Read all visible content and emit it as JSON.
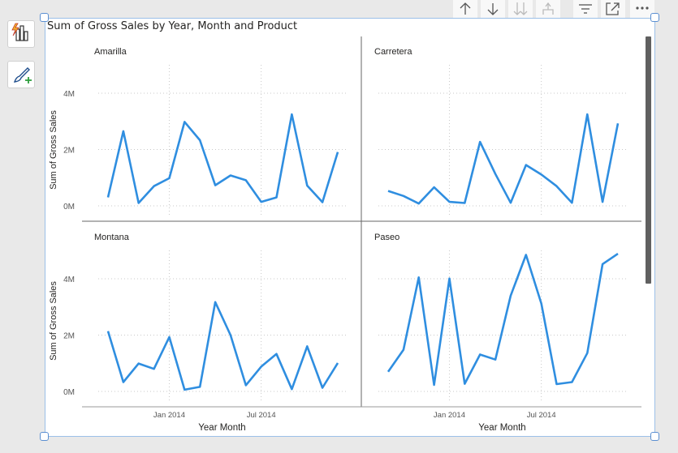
{
  "title": "Sum of Gross Sales by Year, Month and Product",
  "icons": {
    "side_buttons": [
      "build-visual-icon",
      "format-visual-icon"
    ],
    "toolbar": [
      "arrow-up-icon",
      "arrow-down-icon",
      "double-arrow-down-icon",
      "expand-hierarchy-icon",
      "filter-icon",
      "focus-mode-icon",
      "more-options-icon"
    ]
  },
  "colors": {
    "line": "#2f8ee0",
    "selection": "#5b8fd1",
    "text": "#252423",
    "grid": "#c8c8c8"
  },
  "chart_data": {
    "type": "line",
    "small_multiples": true,
    "title": "Sum of Gross Sales by Year, Month and Product",
    "xlabel": "Year Month",
    "ylabel": "Sum of Gross Sales",
    "x_tick_labels": [
      "Jan 2014",
      "Jul 2014"
    ],
    "y_tick_labels": [
      "0M",
      "2M",
      "4M"
    ],
    "y_ticks": [
      0,
      2000000,
      4000000
    ],
    "ylim": [
      0,
      5000000
    ],
    "x": [
      "Sep 2013",
      "Oct 2013",
      "Nov 2013",
      "Dec 2013",
      "Jan 2014",
      "Feb 2014",
      "Mar 2014",
      "Apr 2014",
      "May 2014",
      "Jun 2014",
      "Jul 2014",
      "Aug 2014",
      "Sep 2014",
      "Oct 2014",
      "Nov 2014",
      "Dec 2014"
    ],
    "grid": true,
    "series": [
      {
        "name": "Amarilla",
        "values": [
          300000,
          2650000,
          100000,
          700000,
          980000,
          2980000,
          2330000,
          730000,
          1080000,
          910000,
          140000,
          300000,
          3250000,
          720000,
          130000,
          1910000
        ]
      },
      {
        "name": "Carretera",
        "values": [
          530000,
          350000,
          80000,
          660000,
          140000,
          100000,
          2270000,
          1130000,
          110000,
          1450000,
          1110000,
          700000,
          110000,
          3250000,
          140000,
          2930000
        ]
      },
      {
        "name": "Montana",
        "values": [
          2140000,
          330000,
          990000,
          800000,
          1930000,
          60000,
          160000,
          3170000,
          2000000,
          220000,
          880000,
          1330000,
          80000,
          1600000,
          130000,
          1010000
        ]
      },
      {
        "name": "Paseo",
        "values": [
          700000,
          1480000,
          4050000,
          230000,
          4010000,
          270000,
          1310000,
          1130000,
          3400000,
          4850000,
          3120000,
          260000,
          330000,
          1360000,
          4520000,
          4890000
        ]
      }
    ]
  }
}
